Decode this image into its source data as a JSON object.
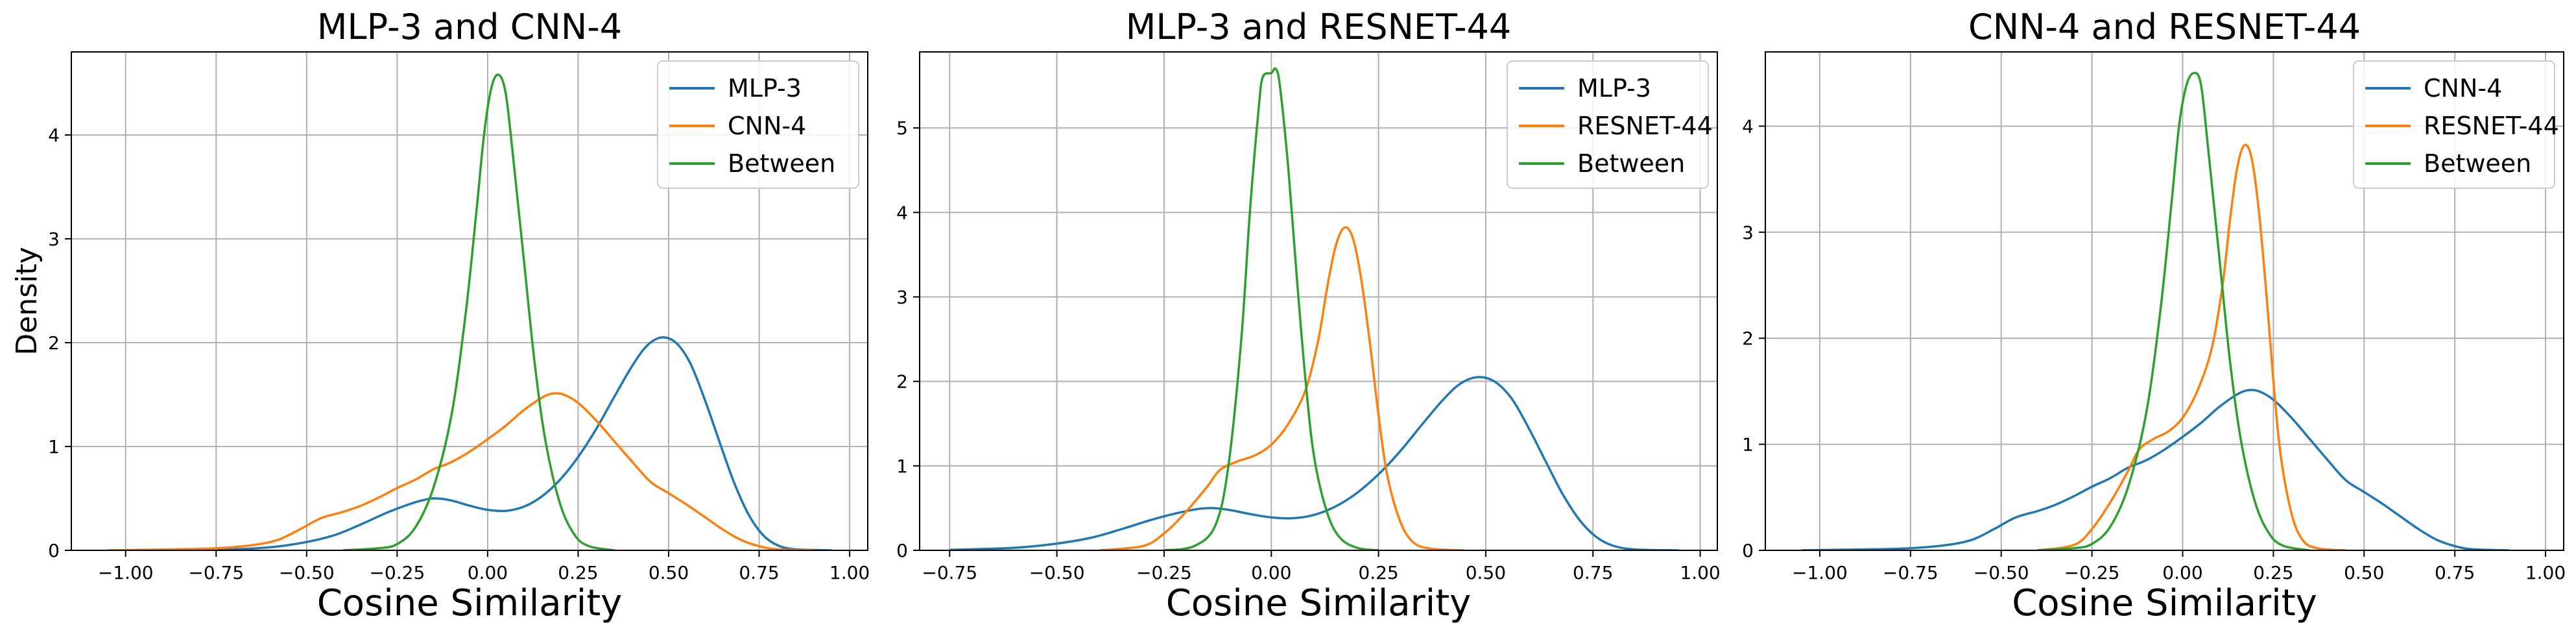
{
  "colors": {
    "MLP-3": "#1f77b4",
    "CNN-4": "#ff7f0e",
    "RESNET-44": "#ff7f0e",
    "Between": "#2ca02c",
    "grid": "#b0b0b0"
  },
  "chart_data": [
    {
      "type": "line",
      "title": "MLP-3 and CNN-4",
      "xlabel": "Cosine Similarity",
      "ylabel": "Density",
      "xlim": [
        -1.15,
        1.05
      ],
      "ylim": [
        0,
        4.8
      ],
      "xticks": [
        -1.0,
        -0.75,
        -0.5,
        -0.25,
        0.0,
        0.25,
        0.5,
        0.75,
        1.0
      ],
      "xtick_labels": [
        "−1.00",
        "−0.75",
        "−0.50",
        "−0.25",
        "0.00",
        "0.25",
        "0.50",
        "0.75",
        "1.00"
      ],
      "yticks": [
        0,
        1,
        2,
        3,
        4
      ],
      "ytick_labels": [
        "0",
        "1",
        "2",
        "3",
        "4"
      ],
      "grid": true,
      "legend": "top-right",
      "series": [
        {
          "name": "MLP-3",
          "color_key": "MLP-3",
          "points": [
            [
              -1.0,
              0.0
            ],
            [
              -0.75,
              0.005
            ],
            [
              -0.6,
              0.03
            ],
            [
              -0.5,
              0.08
            ],
            [
              -0.42,
              0.15
            ],
            [
              -0.35,
              0.25
            ],
            [
              -0.28,
              0.36
            ],
            [
              -0.22,
              0.44
            ],
            [
              -0.17,
              0.49
            ],
            [
              -0.14,
              0.5
            ],
            [
              -0.1,
              0.48
            ],
            [
              -0.05,
              0.43
            ],
            [
              0.0,
              0.39
            ],
            [
              0.05,
              0.38
            ],
            [
              0.1,
              0.42
            ],
            [
              0.15,
              0.52
            ],
            [
              0.2,
              0.68
            ],
            [
              0.25,
              0.9
            ],
            [
              0.3,
              1.17
            ],
            [
              0.35,
              1.48
            ],
            [
              0.4,
              1.78
            ],
            [
              0.44,
              1.97
            ],
            [
              0.48,
              2.05
            ],
            [
              0.52,
              2.0
            ],
            [
              0.56,
              1.8
            ],
            [
              0.6,
              1.45
            ],
            [
              0.64,
              1.05
            ],
            [
              0.68,
              0.66
            ],
            [
              0.72,
              0.35
            ],
            [
              0.76,
              0.15
            ],
            [
              0.8,
              0.05
            ],
            [
              0.85,
              0.01
            ],
            [
              0.95,
              0.0
            ]
          ]
        },
        {
          "name": "CNN-4",
          "color_key": "CNN-4",
          "points": [
            [
              -1.05,
              0.0
            ],
            [
              -0.85,
              0.01
            ],
            [
              -0.75,
              0.02
            ],
            [
              -0.65,
              0.05
            ],
            [
              -0.58,
              0.1
            ],
            [
              -0.52,
              0.2
            ],
            [
              -0.46,
              0.31
            ],
            [
              -0.4,
              0.37
            ],
            [
              -0.35,
              0.43
            ],
            [
              -0.3,
              0.51
            ],
            [
              -0.25,
              0.6
            ],
            [
              -0.2,
              0.68
            ],
            [
              -0.15,
              0.78
            ],
            [
              -0.1,
              0.85
            ],
            [
              -0.05,
              0.95
            ],
            [
              0.0,
              1.07
            ],
            [
              0.05,
              1.2
            ],
            [
              0.1,
              1.35
            ],
            [
              0.15,
              1.47
            ],
            [
              0.18,
              1.51
            ],
            [
              0.21,
              1.5
            ],
            [
              0.25,
              1.42
            ],
            [
              0.3,
              1.25
            ],
            [
              0.35,
              1.05
            ],
            [
              0.4,
              0.85
            ],
            [
              0.45,
              0.66
            ],
            [
              0.5,
              0.55
            ],
            [
              0.55,
              0.44
            ],
            [
              0.6,
              0.32
            ],
            [
              0.65,
              0.2
            ],
            [
              0.7,
              0.1
            ],
            [
              0.75,
              0.04
            ],
            [
              0.8,
              0.01
            ],
            [
              0.9,
              0.0
            ]
          ]
        },
        {
          "name": "Between",
          "color_key": "Between",
          "points": [
            [
              -0.4,
              0.0
            ],
            [
              -0.3,
              0.02
            ],
            [
              -0.25,
              0.06
            ],
            [
              -0.2,
              0.22
            ],
            [
              -0.15,
              0.6
            ],
            [
              -0.1,
              1.3
            ],
            [
              -0.06,
              2.3
            ],
            [
              -0.03,
              3.3
            ],
            [
              -0.01,
              4.0
            ],
            [
              0.01,
              4.45
            ],
            [
              0.03,
              4.58
            ],
            [
              0.05,
              4.4
            ],
            [
              0.07,
              3.8
            ],
            [
              0.1,
              2.8
            ],
            [
              0.13,
              1.8
            ],
            [
              0.16,
              1.05
            ],
            [
              0.2,
              0.45
            ],
            [
              0.24,
              0.15
            ],
            [
              0.28,
              0.04
            ],
            [
              0.35,
              0.0
            ]
          ]
        }
      ]
    },
    {
      "type": "line",
      "title": "MLP-3 and RESNET-44",
      "xlabel": "Cosine Similarity",
      "ylabel": "",
      "xlim": [
        -0.82,
        1.04
      ],
      "ylim": [
        0,
        5.9
      ],
      "xticks": [
        -0.75,
        -0.5,
        -0.25,
        0.0,
        0.25,
        0.5,
        0.75,
        1.0
      ],
      "xtick_labels": [
        "−0.75",
        "−0.50",
        "−0.25",
        "0.00",
        "0.25",
        "0.50",
        "0.75",
        "1.00"
      ],
      "yticks": [
        0,
        1,
        2,
        3,
        4,
        5
      ],
      "ytick_labels": [
        "0",
        "1",
        "2",
        "3",
        "4",
        "5"
      ],
      "grid": true,
      "legend": "top-right",
      "series": [
        {
          "name": "MLP-3",
          "color_key": "MLP-3",
          "points": [
            [
              -0.75,
              0.005
            ],
            [
              -0.6,
              0.03
            ],
            [
              -0.5,
              0.08
            ],
            [
              -0.42,
              0.15
            ],
            [
              -0.35,
              0.25
            ],
            [
              -0.28,
              0.36
            ],
            [
              -0.22,
              0.44
            ],
            [
              -0.17,
              0.49
            ],
            [
              -0.14,
              0.5
            ],
            [
              -0.1,
              0.48
            ],
            [
              -0.05,
              0.43
            ],
            [
              0.0,
              0.39
            ],
            [
              0.05,
              0.38
            ],
            [
              0.1,
              0.42
            ],
            [
              0.15,
              0.52
            ],
            [
              0.2,
              0.68
            ],
            [
              0.25,
              0.9
            ],
            [
              0.3,
              1.17
            ],
            [
              0.35,
              1.48
            ],
            [
              0.4,
              1.78
            ],
            [
              0.44,
              1.97
            ],
            [
              0.48,
              2.05
            ],
            [
              0.52,
              2.0
            ],
            [
              0.56,
              1.8
            ],
            [
              0.6,
              1.45
            ],
            [
              0.64,
              1.05
            ],
            [
              0.68,
              0.66
            ],
            [
              0.72,
              0.35
            ],
            [
              0.76,
              0.15
            ],
            [
              0.8,
              0.05
            ],
            [
              0.85,
              0.01
            ],
            [
              0.95,
              0.0
            ]
          ]
        },
        {
          "name": "RESNET-44",
          "color_key": "RESNET-44",
          "points": [
            [
              -0.4,
              0.0
            ],
            [
              -0.3,
              0.05
            ],
            [
              -0.25,
              0.2
            ],
            [
              -0.2,
              0.45
            ],
            [
              -0.15,
              0.75
            ],
            [
              -0.12,
              0.95
            ],
            [
              -0.08,
              1.05
            ],
            [
              -0.04,
              1.12
            ],
            [
              0.0,
              1.25
            ],
            [
              0.04,
              1.5
            ],
            [
              0.08,
              1.9
            ],
            [
              0.11,
              2.5
            ],
            [
              0.13,
              3.1
            ],
            [
              0.15,
              3.6
            ],
            [
              0.17,
              3.82
            ],
            [
              0.19,
              3.7
            ],
            [
              0.21,
              3.2
            ],
            [
              0.23,
              2.45
            ],
            [
              0.25,
              1.6
            ],
            [
              0.27,
              0.9
            ],
            [
              0.3,
              0.35
            ],
            [
              0.33,
              0.1
            ],
            [
              0.37,
              0.02
            ],
            [
              0.45,
              0.0
            ]
          ]
        },
        {
          "name": "Between",
          "color_key": "Between",
          "points": [
            [
              -0.25,
              0.0
            ],
            [
              -0.18,
              0.05
            ],
            [
              -0.13,
              0.3
            ],
            [
              -0.1,
              1.0
            ],
            [
              -0.07,
              2.5
            ],
            [
              -0.05,
              4.0
            ],
            [
              -0.03,
              5.2
            ],
            [
              -0.02,
              5.6
            ],
            [
              0.0,
              5.65
            ],
            [
              0.01,
              5.7
            ],
            [
              0.02,
              5.5
            ],
            [
              0.04,
              4.5
            ],
            [
              0.06,
              3.2
            ],
            [
              0.08,
              2.0
            ],
            [
              0.1,
              1.1
            ],
            [
              0.13,
              0.45
            ],
            [
              0.16,
              0.15
            ],
            [
              0.2,
              0.03
            ],
            [
              0.25,
              0.0
            ]
          ]
        }
      ]
    },
    {
      "type": "line",
      "title": "CNN-4 and RESNET-44",
      "xlabel": "Cosine Similarity",
      "ylabel": "",
      "xlim": [
        -1.15,
        1.05
      ],
      "ylim": [
        0,
        4.7
      ],
      "xticks": [
        -1.0,
        -0.75,
        -0.5,
        -0.25,
        0.0,
        0.25,
        0.5,
        0.75,
        1.0
      ],
      "xtick_labels": [
        "−1.00",
        "−0.75",
        "−0.50",
        "−0.25",
        "0.00",
        "0.25",
        "0.50",
        "0.75",
        "1.00"
      ],
      "yticks": [
        0,
        1,
        2,
        3,
        4
      ],
      "ytick_labels": [
        "0",
        "1",
        "2",
        "3",
        "4"
      ],
      "grid": true,
      "legend": "top-right",
      "series": [
        {
          "name": "CNN-4",
          "color_key": "MLP-3",
          "points": [
            [
              -1.05,
              0.0
            ],
            [
              -0.85,
              0.01
            ],
            [
              -0.75,
              0.02
            ],
            [
              -0.65,
              0.05
            ],
            [
              -0.58,
              0.1
            ],
            [
              -0.52,
              0.2
            ],
            [
              -0.46,
              0.31
            ],
            [
              -0.4,
              0.37
            ],
            [
              -0.35,
              0.43
            ],
            [
              -0.3,
              0.51
            ],
            [
              -0.25,
              0.6
            ],
            [
              -0.2,
              0.68
            ],
            [
              -0.15,
              0.78
            ],
            [
              -0.1,
              0.85
            ],
            [
              -0.05,
              0.95
            ],
            [
              0.0,
              1.07
            ],
            [
              0.05,
              1.2
            ],
            [
              0.1,
              1.35
            ],
            [
              0.15,
              1.47
            ],
            [
              0.18,
              1.51
            ],
            [
              0.21,
              1.5
            ],
            [
              0.25,
              1.42
            ],
            [
              0.3,
              1.25
            ],
            [
              0.35,
              1.05
            ],
            [
              0.4,
              0.85
            ],
            [
              0.45,
              0.66
            ],
            [
              0.5,
              0.55
            ],
            [
              0.55,
              0.44
            ],
            [
              0.6,
              0.32
            ],
            [
              0.65,
              0.2
            ],
            [
              0.7,
              0.1
            ],
            [
              0.75,
              0.04
            ],
            [
              0.8,
              0.01
            ],
            [
              0.9,
              0.0
            ]
          ]
        },
        {
          "name": "RESNET-44",
          "color_key": "RESNET-44",
          "points": [
            [
              -0.4,
              0.0
            ],
            [
              -0.3,
              0.05
            ],
            [
              -0.25,
              0.2
            ],
            [
              -0.2,
              0.45
            ],
            [
              -0.15,
              0.75
            ],
            [
              -0.12,
              0.95
            ],
            [
              -0.08,
              1.05
            ],
            [
              -0.04,
              1.12
            ],
            [
              0.0,
              1.25
            ],
            [
              0.04,
              1.5
            ],
            [
              0.08,
              1.9
            ],
            [
              0.11,
              2.5
            ],
            [
              0.13,
              3.1
            ],
            [
              0.15,
              3.6
            ],
            [
              0.17,
              3.82
            ],
            [
              0.19,
              3.7
            ],
            [
              0.21,
              3.2
            ],
            [
              0.23,
              2.45
            ],
            [
              0.25,
              1.6
            ],
            [
              0.27,
              0.9
            ],
            [
              0.3,
              0.35
            ],
            [
              0.33,
              0.1
            ],
            [
              0.37,
              0.02
            ],
            [
              0.45,
              0.0
            ]
          ]
        },
        {
          "name": "Between",
          "color_key": "Between",
          "points": [
            [
              -0.4,
              0.0
            ],
            [
              -0.3,
              0.02
            ],
            [
              -0.25,
              0.06
            ],
            [
              -0.2,
              0.22
            ],
            [
              -0.15,
              0.6
            ],
            [
              -0.1,
              1.3
            ],
            [
              -0.06,
              2.3
            ],
            [
              -0.03,
              3.3
            ],
            [
              -0.01,
              4.0
            ],
            [
              0.01,
              4.38
            ],
            [
              0.03,
              4.5
            ],
            [
              0.05,
              4.4
            ],
            [
              0.07,
              3.8
            ],
            [
              0.1,
              2.8
            ],
            [
              0.13,
              1.8
            ],
            [
              0.16,
              1.05
            ],
            [
              0.2,
              0.45
            ],
            [
              0.24,
              0.15
            ],
            [
              0.28,
              0.04
            ],
            [
              0.35,
              0.0
            ]
          ]
        }
      ]
    }
  ]
}
